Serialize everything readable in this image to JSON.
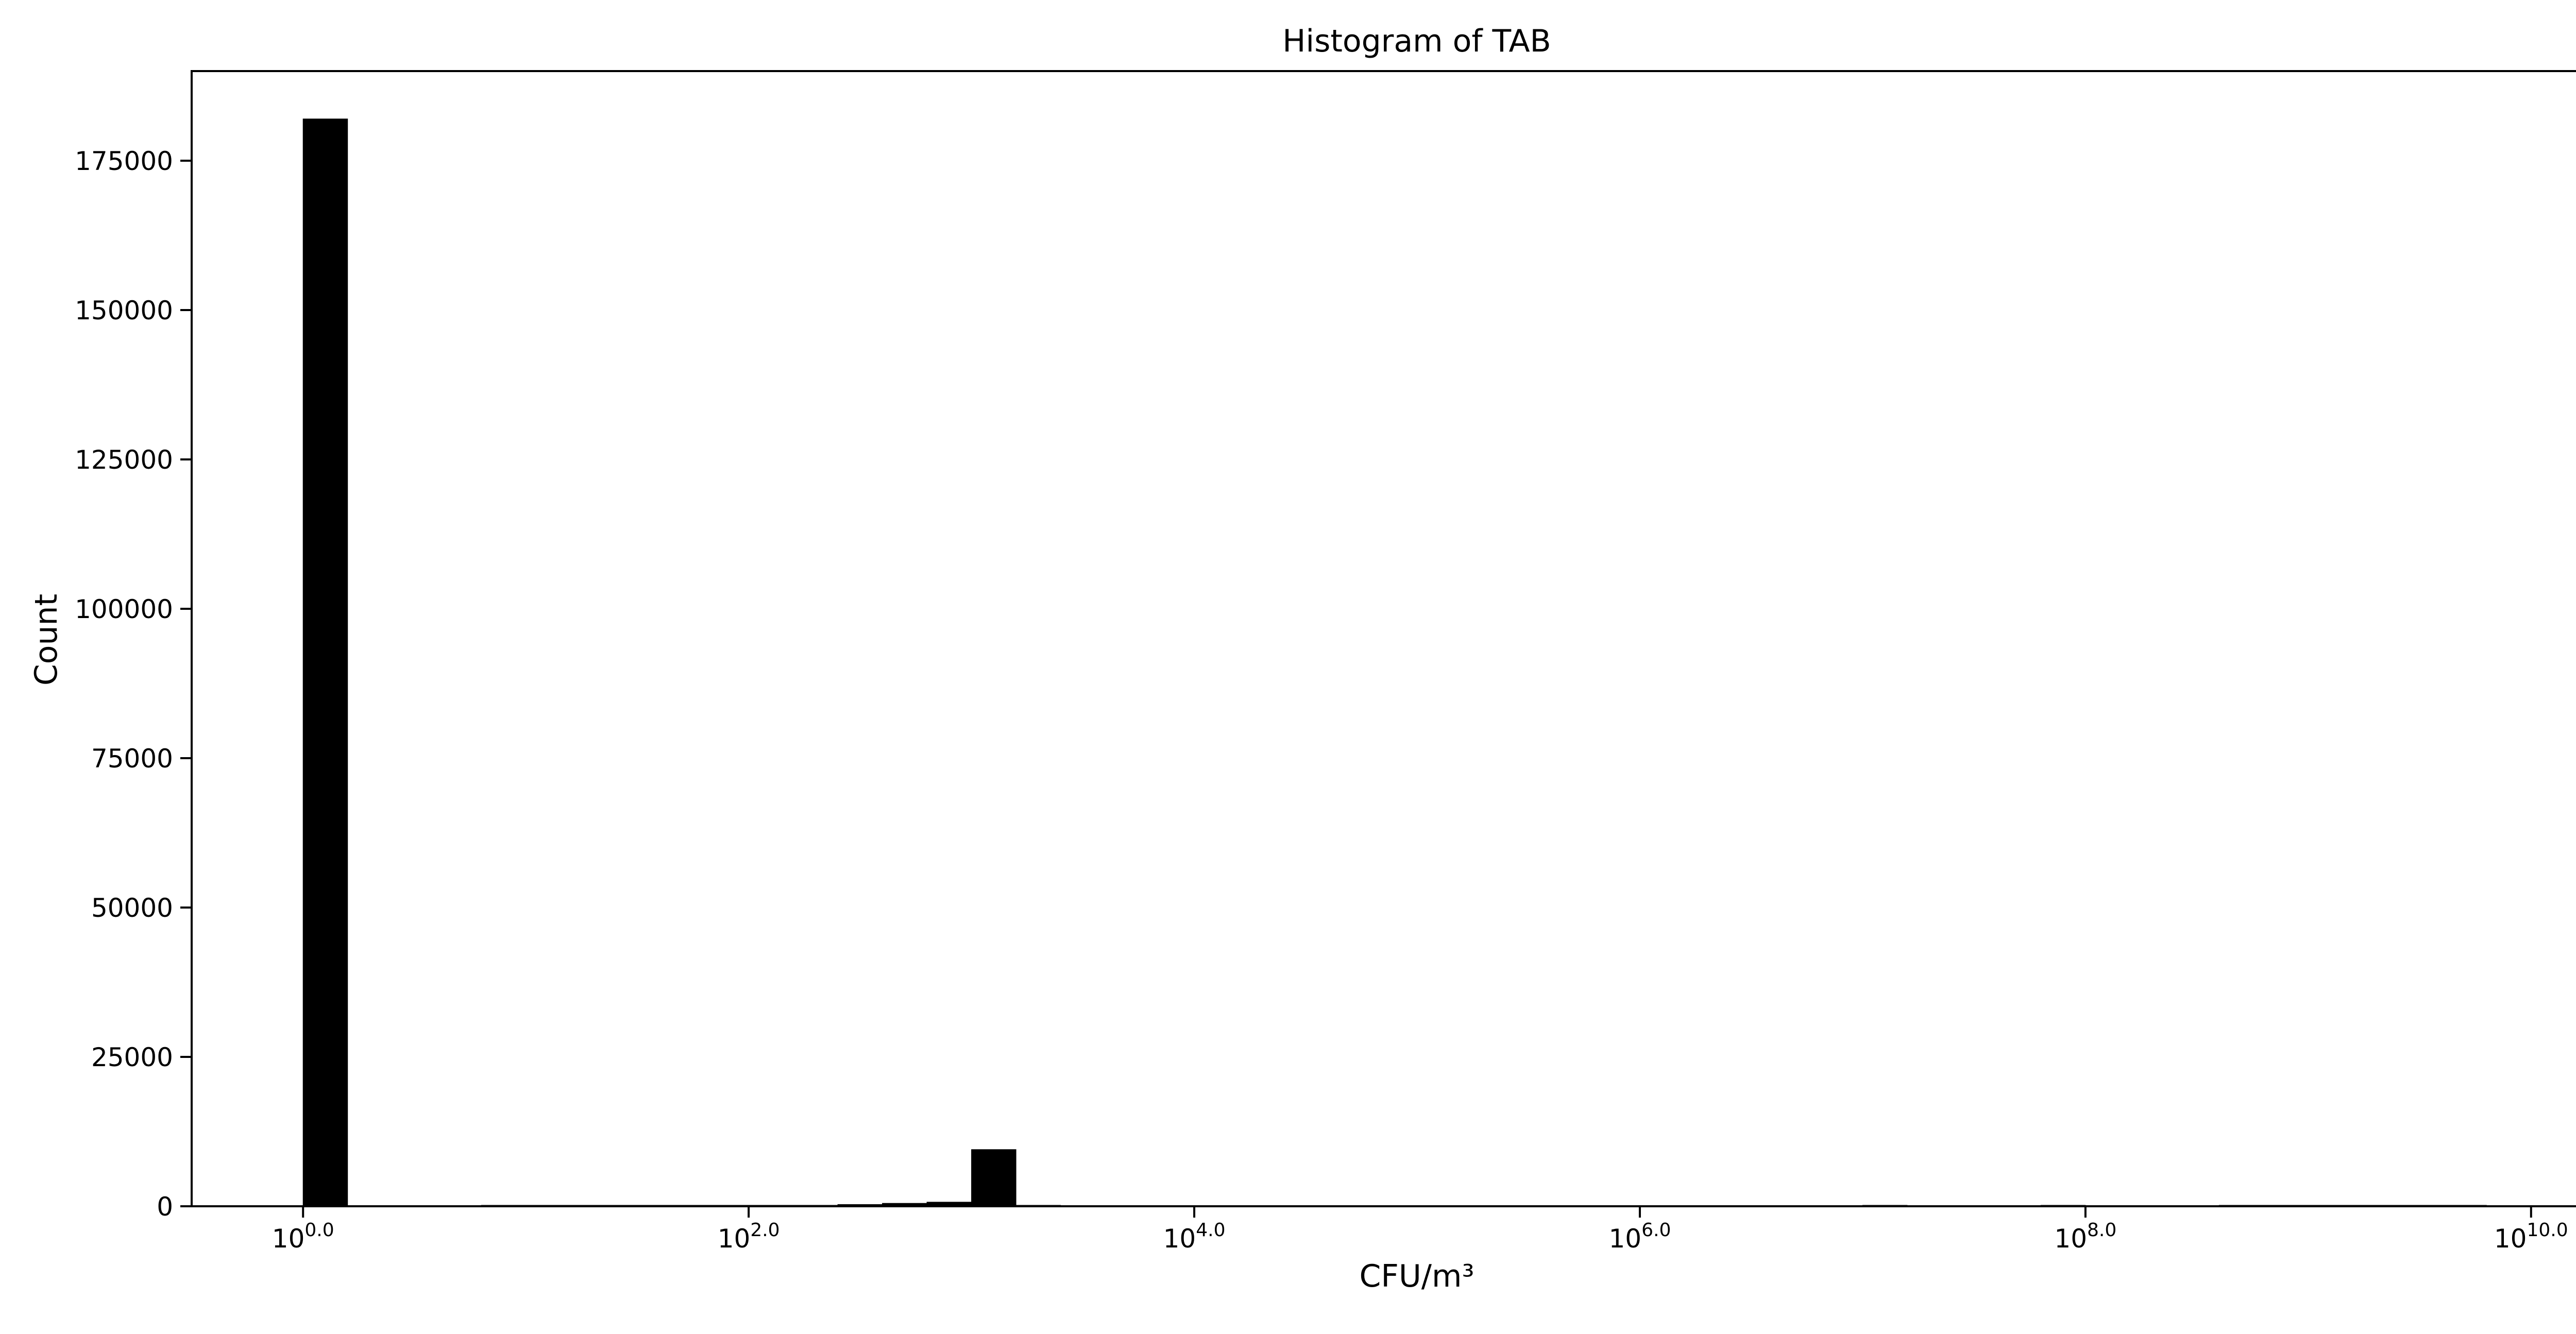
{
  "chart_data": {
    "type": "bar",
    "title": "Histogram of TAB",
    "xlabel": "CFU/m³",
    "ylabel": "Count",
    "xscale": "log10",
    "x_range_log10": [
      -0.5,
      10.5
    ],
    "ylim": [
      0,
      190000
    ],
    "x_ticks": [
      {
        "exp": 0,
        "base": "10",
        "sup": "0.0"
      },
      {
        "exp": 2,
        "base": "10",
        "sup": "2.0"
      },
      {
        "exp": 4,
        "base": "10",
        "sup": "4.0"
      },
      {
        "exp": 6,
        "base": "10",
        "sup": "6.0"
      },
      {
        "exp": 8,
        "base": "10",
        "sup": "8.0"
      },
      {
        "exp": 10,
        "base": "10",
        "sup": "10.0"
      }
    ],
    "y_ticks": [
      0,
      25000,
      50000,
      75000,
      100000,
      125000,
      150000,
      175000
    ],
    "bin_width_log10": 0.2,
    "bins": [
      {
        "start": 0.0,
        "count": 182000
      },
      {
        "start": 0.8,
        "count": 80
      },
      {
        "start": 1.0,
        "count": 60
      },
      {
        "start": 1.2,
        "count": 60
      },
      {
        "start": 1.4,
        "count": 60
      },
      {
        "start": 1.6,
        "count": 60
      },
      {
        "start": 1.8,
        "count": 60
      },
      {
        "start": 2.0,
        "count": 60
      },
      {
        "start": 2.2,
        "count": 60
      },
      {
        "start": 2.4,
        "count": 300
      },
      {
        "start": 2.6,
        "count": 500
      },
      {
        "start": 2.8,
        "count": 700
      },
      {
        "start": 3.0,
        "count": 9500
      },
      {
        "start": 3.2,
        "count": 150
      },
      {
        "start": 7.0,
        "count": 50
      },
      {
        "start": 7.8,
        "count": 50
      },
      {
        "start": 8.6,
        "count": 40
      },
      {
        "start": 8.8,
        "count": 40
      },
      {
        "start": 9.0,
        "count": 40
      },
      {
        "start": 9.2,
        "count": 40
      },
      {
        "start": 9.4,
        "count": 40
      },
      {
        "start": 9.6,
        "count": 40
      }
    ],
    "bar_color": "#000000",
    "grid": false,
    "legend": {
      "position": "top-right",
      "entries": []
    }
  }
}
